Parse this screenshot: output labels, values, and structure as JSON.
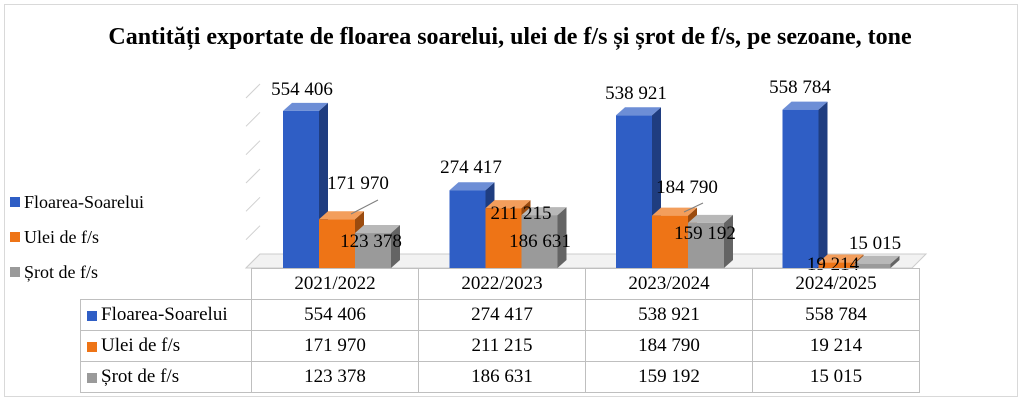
{
  "chart_data": {
    "type": "bar",
    "title": "Cantități exportate de floarea soarelui, ulei de f/s și șrot de f/s, pe sezoane, tone",
    "categories": [
      "2021/2022",
      "2022/2023",
      "2023/2024",
      "2024/2025"
    ],
    "series": [
      {
        "name": "Floarea-Soarelui",
        "color": "#2f5ec5",
        "values": [
          554406,
          274417,
          538921,
          558784
        ],
        "labels": [
          "554 406",
          "274 417",
          "538 921",
          "558 784"
        ]
      },
      {
        "name": "Ulei de f/s",
        "color": "#ee7416",
        "values": [
          171970,
          211215,
          184790,
          19214
        ],
        "labels": [
          "171 970",
          "211 215",
          "184 790",
          "19 214"
        ]
      },
      {
        "name": "Șrot de f/s",
        "color": "#9a9a9a",
        "values": [
          123378,
          186631,
          159192,
          15015
        ],
        "labels": [
          "123 378",
          "186 631",
          "159 192",
          "15 015"
        ]
      }
    ],
    "legend_position": "left",
    "grid": true,
    "style": "3d-column-with-data-table"
  }
}
